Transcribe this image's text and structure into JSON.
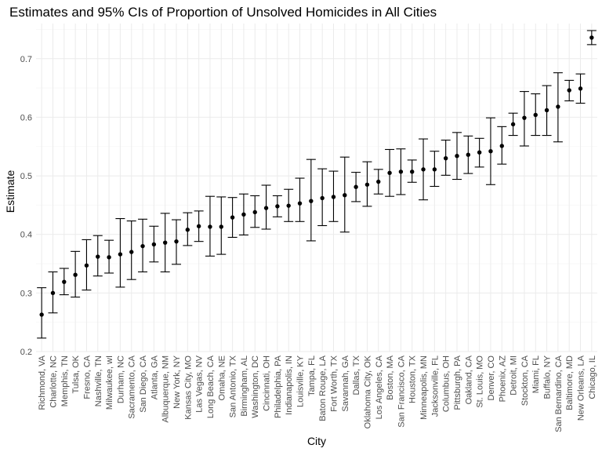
{
  "chart_data": {
    "type": "scatter",
    "title": "Estimates and 95% CIs of Proportion of Unsolved Homicides in All Cities",
    "xlabel": "City",
    "ylabel": "Estimate",
    "ylim": [
      0.2,
      0.76
    ],
    "yticks": [
      "0.2",
      "0.3",
      "0.4",
      "0.5",
      "0.6",
      "0.7"
    ],
    "grid": true,
    "categories": [
      "Richmond, VA",
      "Charlotte, NC",
      "Memphis, TN",
      "Tulsa, OK",
      "Fresno, CA",
      "Nashville, TN",
      "Milwaukee, wI",
      "Durham, NC",
      "Sacramento, CA",
      "San Diego, CA",
      "Atlanta, GA",
      "Albuquerque, NM",
      "New York, NY",
      "Kansas City, MO",
      "Las Vegas, NV",
      "Long Beach, CA",
      "Omaha, NE",
      "San Antonio, TX",
      "Birmingham, AL",
      "Washington, DC",
      "Cincinnati, OH",
      "Philadelphia, PA",
      "Indianapolis, IN",
      "Louisville, KY",
      "Tampa, FL",
      "Baton Rouge, LA",
      "Fort Worth, TX",
      "Savannah, GA",
      "Dallas, TX",
      "Oklahoma City, OK",
      "Los Angeles, CA",
      "Boston, MA",
      "San Francisco, CA",
      "Houston, TX",
      "Minneapolis, MN",
      "Jacksonville, FL",
      "Columbus, OH",
      "Pittsburgh, PA",
      "Oakland, CA",
      "St. Louis, MO",
      "Denver, CO",
      "Phoenix, AZ",
      "Detroit, MI",
      "Stockton, CA",
      "Miami, FL",
      "Buffalo, NY",
      "San Bernardino, CA",
      "Baltimore, MD",
      "New Orleans, LA",
      "Chicago, IL"
    ],
    "estimate": [
      0.263,
      0.3,
      0.319,
      0.331,
      0.347,
      0.362,
      0.361,
      0.366,
      0.37,
      0.38,
      0.383,
      0.386,
      0.388,
      0.408,
      0.414,
      0.413,
      0.413,
      0.429,
      0.434,
      0.438,
      0.445,
      0.448,
      0.449,
      0.453,
      0.457,
      0.462,
      0.464,
      0.467,
      0.481,
      0.485,
      0.49,
      0.505,
      0.507,
      0.507,
      0.511,
      0.511,
      0.53,
      0.534,
      0.536,
      0.54,
      0.542,
      0.551,
      0.588,
      0.599,
      0.604,
      0.612,
      0.618,
      0.646,
      0.649,
      0.736
    ],
    "conf_low": [
      0.223,
      0.266,
      0.297,
      0.293,
      0.305,
      0.329,
      0.334,
      0.31,
      0.323,
      0.336,
      0.353,
      0.336,
      0.349,
      0.381,
      0.388,
      0.363,
      0.366,
      0.395,
      0.399,
      0.412,
      0.409,
      0.43,
      0.422,
      0.422,
      0.389,
      0.415,
      0.422,
      0.404,
      0.456,
      0.448,
      0.469,
      0.465,
      0.468,
      0.489,
      0.459,
      0.482,
      0.501,
      0.494,
      0.504,
      0.515,
      0.485,
      0.52,
      0.569,
      0.551,
      0.569,
      0.569,
      0.558,
      0.628,
      0.624,
      0.724
    ],
    "conf_high": [
      0.309,
      0.336,
      0.342,
      0.371,
      0.391,
      0.398,
      0.39,
      0.427,
      0.423,
      0.426,
      0.414,
      0.436,
      0.425,
      0.437,
      0.44,
      0.465,
      0.464,
      0.463,
      0.469,
      0.466,
      0.484,
      0.466,
      0.477,
      0.496,
      0.528,
      0.512,
      0.508,
      0.532,
      0.506,
      0.524,
      0.511,
      0.545,
      0.546,
      0.527,
      0.563,
      0.542,
      0.561,
      0.574,
      0.568,
      0.564,
      0.599,
      0.584,
      0.607,
      0.644,
      0.64,
      0.654,
      0.676,
      0.663,
      0.674,
      0.748
    ]
  }
}
